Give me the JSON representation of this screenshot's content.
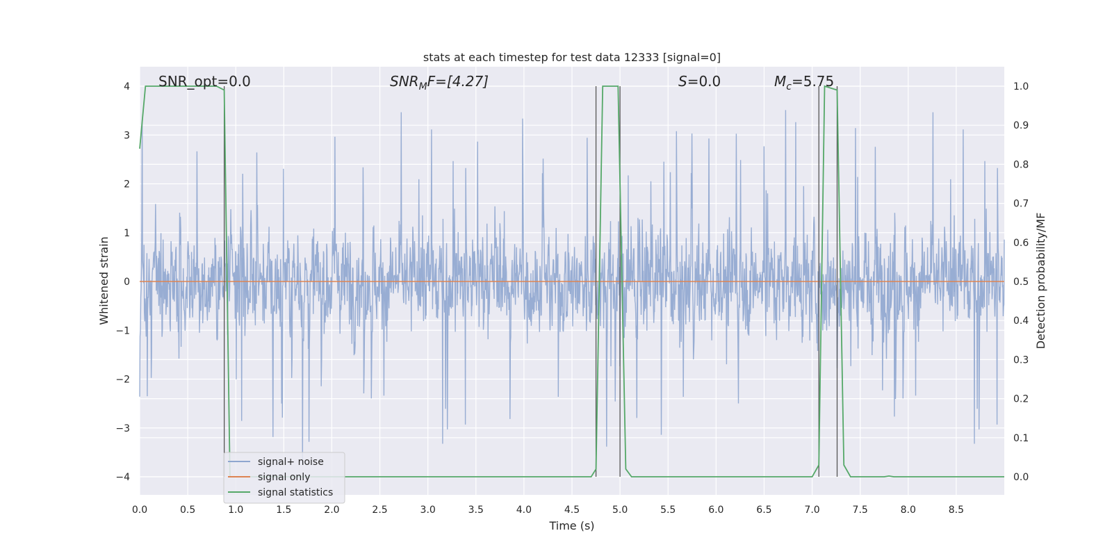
{
  "chart_data": {
    "type": "line",
    "title": "stats at each timestep for test data 12333 [signal=0]",
    "xlabel": "Time (s)",
    "ylabel_left": "Whitened strain",
    "ylabel_right": "Detection probability/MF",
    "xlim": [
      0.0,
      9.0
    ],
    "ylim_left": [
      -4.0,
      4.0
    ],
    "ylim_right": [
      0.0,
      1.0
    ],
    "x_ticks": [
      "0.0",
      "0.5",
      "1.0",
      "1.5",
      "2.0",
      "2.5",
      "3.0",
      "3.5",
      "4.0",
      "4.5",
      "5.0",
      "5.5",
      "6.0",
      "6.5",
      "7.0",
      "7.5",
      "8.0",
      "8.5"
    ],
    "y_ticks_left": [
      "4",
      "3",
      "2",
      "1",
      "0",
      "−1",
      "−2",
      "−3",
      "−4"
    ],
    "y_ticks_right": [
      "1.0",
      "0.9",
      "0.8",
      "0.7",
      "0.6",
      "0.5",
      "0.4",
      "0.3",
      "0.2",
      "0.1",
      "0.0"
    ],
    "grid": true,
    "legend_position": "lower-left",
    "annotations": {
      "snr_opt": "SNR_opt=0.0",
      "snr_mf_prefix": "SNR",
      "snr_mf_sub": "M",
      "snr_mf_suffix": "F=[4.27]",
      "s_var": "S",
      "s_value": "=0.0",
      "mc_var": "M",
      "mc_sub": "c",
      "mc_value": "=5.75"
    },
    "series": [
      {
        "name": "signal+ noise",
        "color": "#8fa6cf",
        "axis": "left",
        "description": "whitened noisy strain, dense oscillation roughly between -2.5 and 2.5 with peaks to about 3.6"
      },
      {
        "name": "signal only",
        "color": "#dd8452",
        "axis": "left",
        "x": [
          0.0,
          9.0
        ],
        "y": [
          0.0,
          0.0
        ]
      },
      {
        "name": "signal statistics",
        "color": "#55a868",
        "axis": "right",
        "x": [
          0.0,
          0.06,
          0.12,
          0.8,
          0.88,
          0.94,
          1.0,
          4.7,
          4.75,
          4.82,
          4.98,
          5.06,
          5.12,
          7.0,
          7.07,
          7.13,
          7.26,
          7.33,
          7.4,
          7.75,
          7.8,
          7.85,
          9.0
        ],
        "y": [
          0.84,
          1.0,
          1.0,
          1.0,
          0.99,
          0.0,
          0.0,
          0.0,
          0.02,
          1.0,
          1.0,
          0.02,
          0.0,
          0.0,
          0.03,
          1.0,
          0.99,
          0.03,
          0.0,
          0.0,
          0.002,
          0.0,
          0.0
        ]
      }
    ],
    "vertical_markers": [
      0.88,
      4.75,
      5.0,
      7.07,
      7.26
    ]
  }
}
